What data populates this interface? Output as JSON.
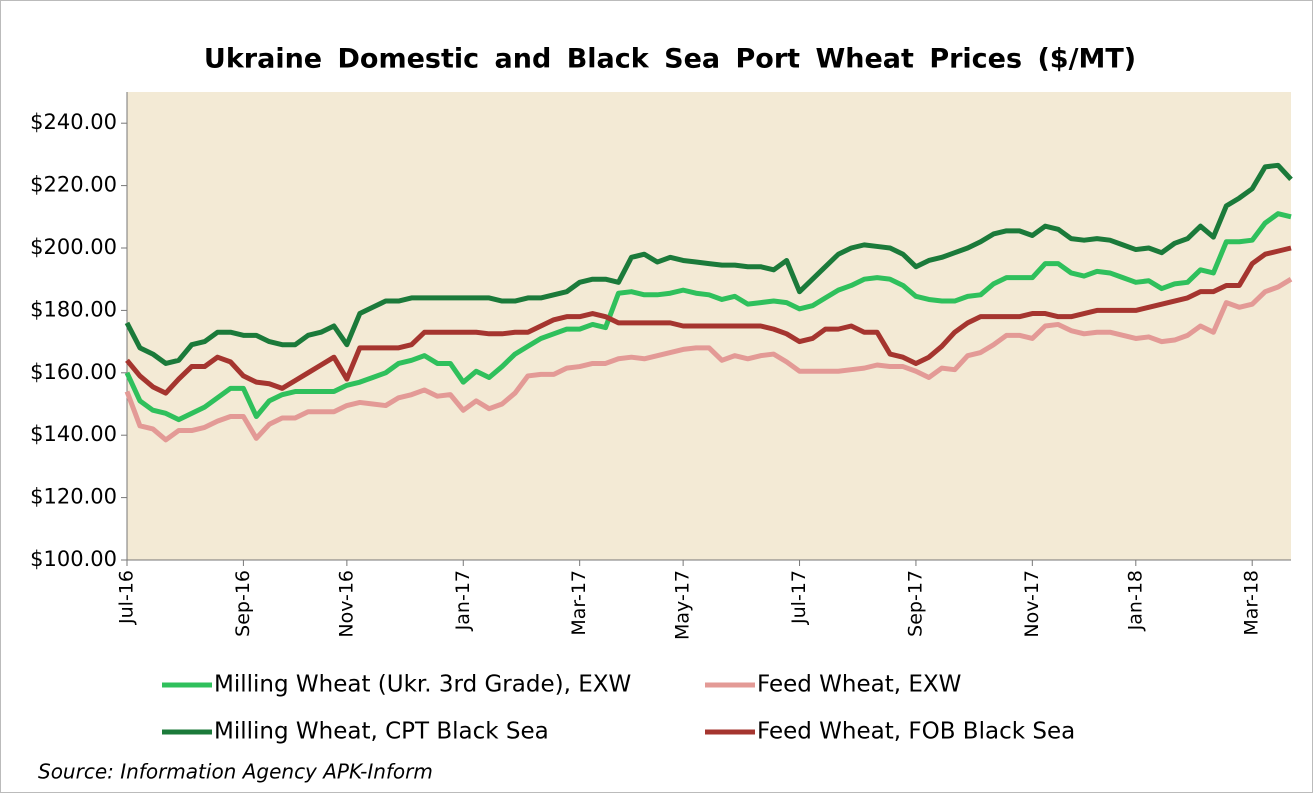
{
  "chart_data": {
    "type": "line",
    "title": "Ukraine Domestic and Black Sea Port Wheat Prices ($/MT)",
    "annotation": "Source:  Information  Agency  APK-Inform",
    "categories": [
      "Jul-16",
      null,
      null,
      null,
      null,
      null,
      null,
      null,
      null,
      "Sep-16",
      null,
      null,
      null,
      null,
      null,
      null,
      null,
      "Nov-16",
      null,
      null,
      null,
      null,
      null,
      null,
      null,
      null,
      "Jan-17",
      null,
      null,
      null,
      null,
      null,
      null,
      null,
      null,
      "Mar-17",
      null,
      null,
      null,
      null,
      null,
      null,
      null,
      "May-17",
      null,
      null,
      null,
      null,
      null,
      null,
      null,
      null,
      "Jul-17",
      null,
      null,
      null,
      null,
      null,
      null,
      null,
      null,
      "Sep-17",
      null,
      null,
      null,
      null,
      null,
      null,
      null,
      null,
      "Nov-17",
      null,
      null,
      null,
      null,
      null,
      null,
      null,
      "Jan-18",
      null,
      null,
      null,
      null,
      null,
      null,
      null,
      null,
      "Mar-18",
      null,
      null,
      null
    ],
    "series": [
      {
        "name": "Milling Wheat (Ukr. 3rd Grade), EXW",
        "color": "#2fc05c",
        "values": [
          160,
          151,
          148,
          147,
          145,
          147,
          149,
          152,
          155,
          155,
          146,
          151,
          153,
          154,
          154,
          154,
          154,
          156,
          157,
          158.5,
          160,
          163,
          164,
          165.5,
          163,
          163,
          157,
          160.5,
          158.5,
          162,
          166,
          168.5,
          171,
          172.5,
          174,
          174,
          175.5,
          174.5,
          185.5,
          186,
          185,
          185,
          185.5,
          186.5,
          185.5,
          185,
          183.5,
          184.5,
          182,
          182.5,
          183,
          182.5,
          180.5,
          181.5,
          184,
          186.5,
          188,
          190,
          190.5,
          190,
          188,
          184.5,
          183.5,
          183,
          183,
          184.5,
          185,
          188.5,
          190.5,
          190.5,
          190.5,
          195,
          195,
          192,
          191,
          192.5,
          192,
          190.5,
          189,
          189.5,
          187,
          188.5,
          189,
          193,
          192,
          202,
          202,
          202.5,
          208,
          211,
          210
        ]
      },
      {
        "name": "Feed Wheat, EXW",
        "color": "#e39a96",
        "values": [
          154,
          143,
          142,
          138.5,
          141.5,
          141.5,
          142.5,
          144.5,
          146,
          146,
          139,
          143.5,
          145.5,
          145.5,
          147.5,
          147.5,
          147.5,
          149.5,
          150.5,
          150,
          149.5,
          152,
          153,
          154.5,
          152.5,
          153,
          148,
          151,
          148.5,
          150,
          153.5,
          159,
          159.5,
          159.5,
          161.5,
          162,
          163,
          163,
          164.5,
          165,
          164.5,
          165.5,
          166.5,
          167.5,
          168,
          168,
          164,
          165.5,
          164.5,
          165.5,
          166,
          163.5,
          160.5,
          160.5,
          160.5,
          160.5,
          161,
          161.5,
          162.5,
          162,
          162,
          160.5,
          158.5,
          161.5,
          161,
          165.5,
          166.5,
          169,
          172,
          172,
          171,
          175,
          175.5,
          173.5,
          172.5,
          173,
          173,
          172,
          171,
          171.5,
          170,
          170.5,
          172,
          175,
          173,
          182.5,
          181,
          182,
          186,
          187.5,
          190
        ]
      },
      {
        "name": "Milling Wheat, CPT Black Sea",
        "color": "#1b7a3a",
        "values": [
          176,
          168,
          166,
          163,
          164,
          169,
          170,
          173,
          173,
          172,
          172,
          170,
          169,
          169,
          172,
          173,
          175,
          169,
          179,
          181,
          183,
          183,
          184,
          184,
          184,
          184,
          184,
          184,
          184,
          183,
          183,
          184,
          184,
          185,
          186,
          189,
          190,
          190,
          189,
          197,
          198,
          195.5,
          197,
          196,
          195.5,
          195,
          194.5,
          194.5,
          194,
          194,
          193,
          196,
          186,
          190,
          194,
          198,
          200,
          201,
          200.5,
          200,
          198,
          194,
          196,
          197,
          198.5,
          200,
          202,
          204.5,
          205.5,
          205.5,
          204,
          207,
          206,
          203,
          202.5,
          203,
          202.5,
          201,
          199.5,
          200,
          198.5,
          201.5,
          203,
          207,
          203.5,
          213.5,
          216,
          219,
          226,
          226.5,
          222
        ]
      },
      {
        "name": "Feed Wheat, FOB Black Sea",
        "color": "#a5352f",
        "values": [
          164,
          159,
          155.5,
          153.5,
          158,
          162,
          162,
          165,
          163.5,
          159,
          157,
          156.5,
          155,
          157.5,
          160,
          162.5,
          165,
          158,
          168,
          168,
          168,
          168,
          169,
          173,
          173,
          173,
          173,
          173,
          172.5,
          172.5,
          173,
          173,
          175,
          177,
          178,
          178,
          179,
          178,
          176,
          176,
          176,
          176,
          176,
          175,
          175,
          175,
          175,
          175,
          175,
          175,
          174,
          172.5,
          170,
          171,
          174,
          174,
          175,
          173,
          173,
          166,
          165,
          163,
          165,
          168.5,
          173,
          176,
          178,
          178,
          178,
          178,
          179,
          179,
          178,
          178,
          179,
          180,
          180,
          180,
          180,
          181,
          182,
          183,
          184,
          186,
          186,
          188,
          188,
          195,
          198,
          199,
          200
        ]
      }
    ],
    "ylim": [
      100,
      250
    ],
    "yticks": [
      {
        "value": 100,
        "label": "$100.00"
      },
      {
        "value": 120,
        "label": "$120.00"
      },
      {
        "value": 140,
        "label": "$140.00"
      },
      {
        "value": 160,
        "label": "$160.00"
      },
      {
        "value": 180,
        "label": "$180.00"
      },
      {
        "value": 200,
        "label": "$200.00"
      },
      {
        "value": 220,
        "label": "$220.00"
      },
      {
        "value": 240,
        "label": "$240.00"
      }
    ],
    "grid": false,
    "plot_background": "#f3ead5"
  }
}
